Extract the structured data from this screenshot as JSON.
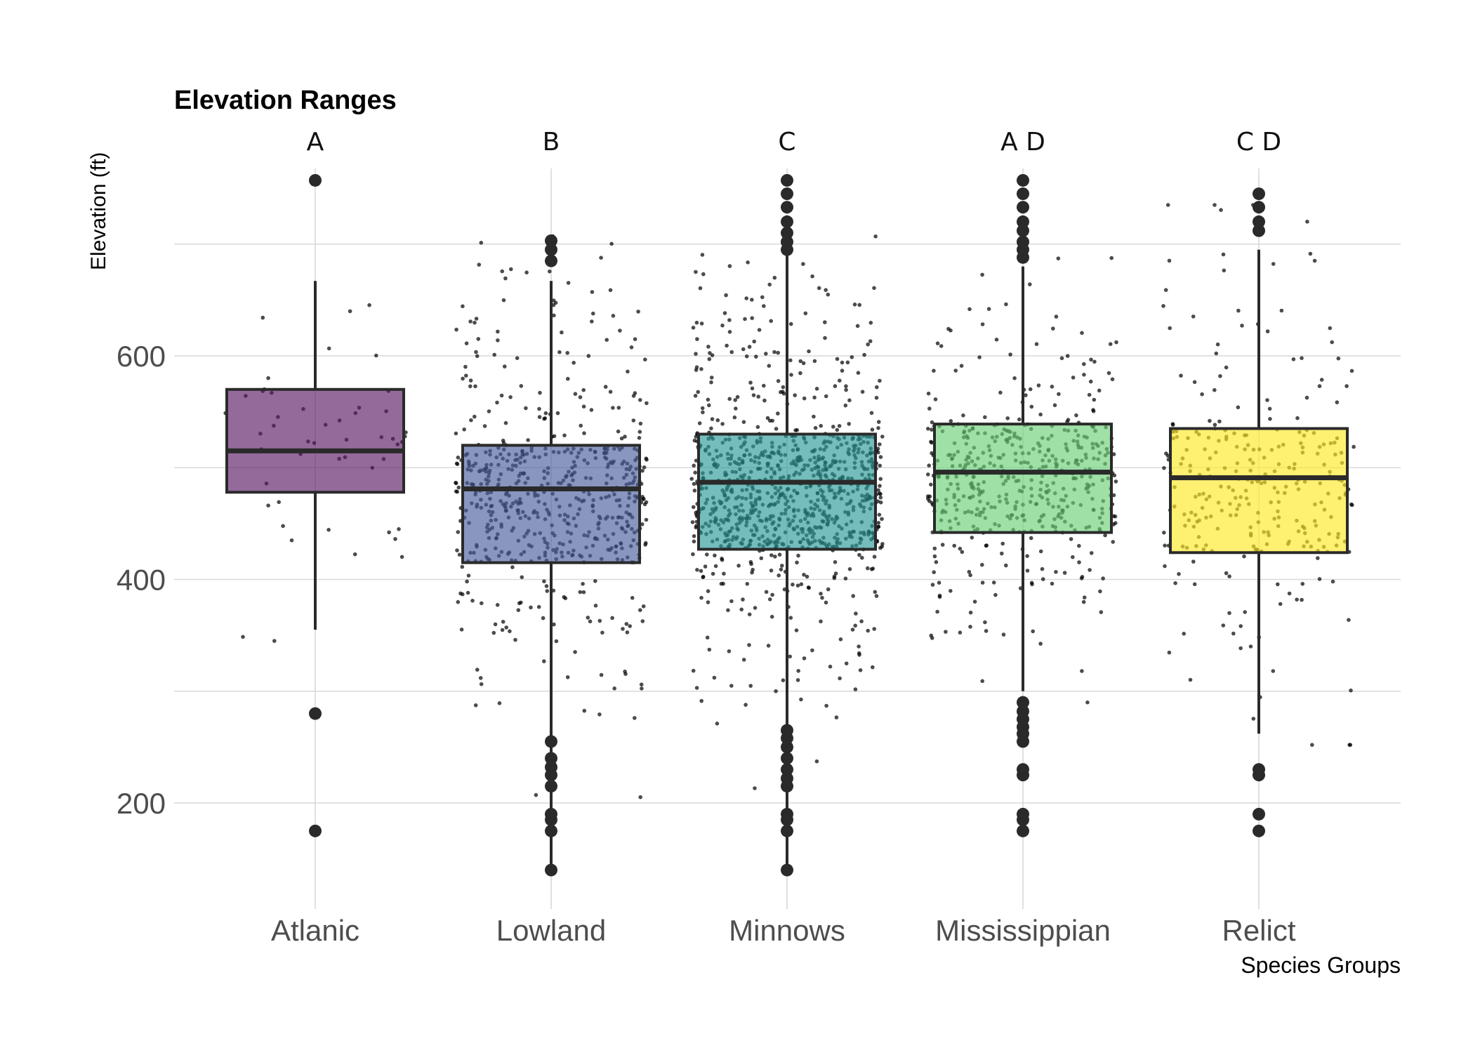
{
  "chart_data": {
    "type": "box",
    "title": "Elevation Ranges",
    "xlabel": "Species Groups",
    "ylabel": "Elevation (ft)",
    "ylim": [
      110,
      770
    ],
    "yticks": [
      200,
      400,
      600
    ],
    "grid": true,
    "jitter_points": true,
    "categories": [
      "Atlanic",
      "Lowland",
      "Minnows",
      "Mississippian",
      "Relict"
    ],
    "significance_letters": [
      "A",
      "B",
      "C",
      "A D",
      "C D"
    ],
    "colors": [
      "#5B1A66",
      "#4A5E9C",
      "#2A9A98",
      "#6CCF78",
      "#FDE825"
    ],
    "boxes": [
      {
        "q1": 478,
        "median": 515,
        "q3": 570,
        "whisker_low": 355,
        "whisker_high": 667,
        "outliers": [
          757,
          280,
          175
        ],
        "n_points": 50
      },
      {
        "q1": 415,
        "median": 481,
        "q3": 520,
        "whisker_low": 140,
        "whisker_high": 667,
        "outliers": [
          703,
          695,
          685,
          255,
          240,
          232,
          225,
          215,
          190,
          185,
          175,
          140
        ],
        "n_points": 600
      },
      {
        "q1": 427,
        "median": 487,
        "q3": 530,
        "whisker_low": 140,
        "whisker_high": 700,
        "outliers": [
          757,
          745,
          733,
          720,
          710,
          702,
          695,
          265,
          258,
          250,
          240,
          230,
          222,
          215,
          190,
          185,
          175,
          140
        ],
        "n_points": 1000
      },
      {
        "q1": 442,
        "median": 496,
        "q3": 539,
        "whisker_low": 300,
        "whisker_high": 680,
        "outliers": [
          757,
          745,
          733,
          720,
          712,
          702,
          695,
          688,
          290,
          282,
          275,
          268,
          262,
          255,
          230,
          225,
          190,
          185,
          175
        ],
        "n_points": 500
      },
      {
        "q1": 424,
        "median": 491,
        "q3": 535,
        "whisker_low": 262,
        "whisker_high": 695,
        "outliers": [
          745,
          733,
          720,
          712,
          230,
          225,
          190,
          175
        ],
        "n_points": 280
      }
    ]
  }
}
